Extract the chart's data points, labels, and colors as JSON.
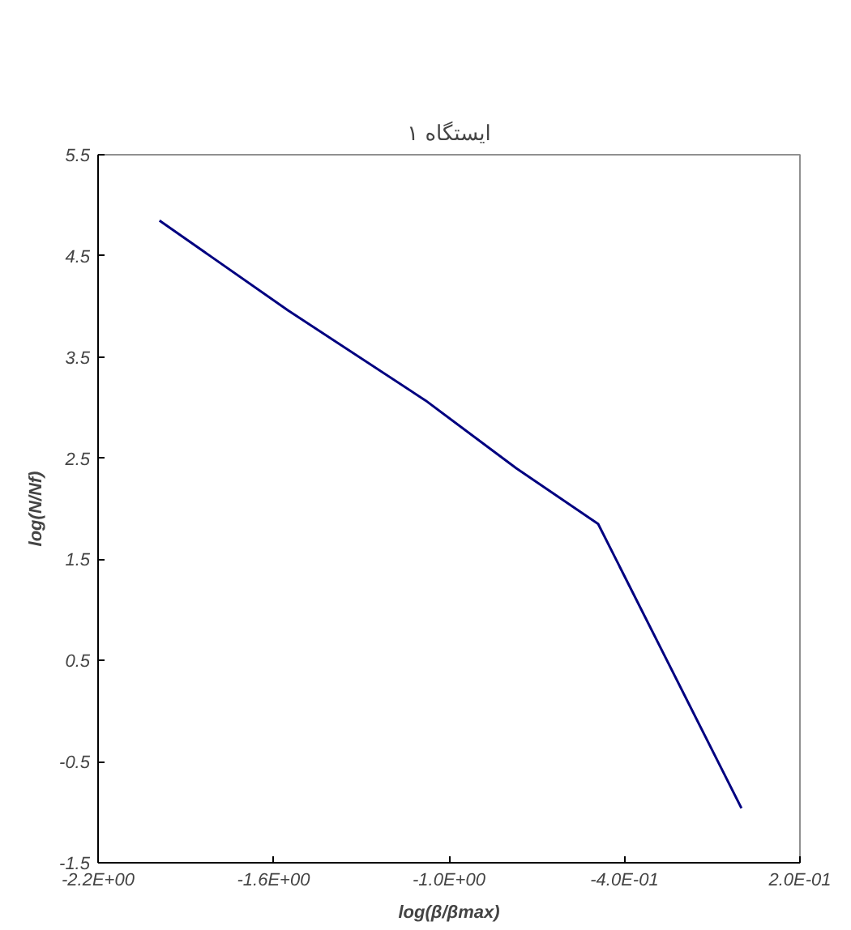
{
  "chart_data": {
    "type": "line",
    "title": "ایستگاه ۱",
    "xlabel": "log(β/βmax)",
    "ylabel": "log(N/Nf)",
    "x": [
      -1.99,
      -1.55,
      -1.08,
      -0.77,
      -0.49,
      0.0
    ],
    "series": [
      {
        "color": "#000080",
        "values": [
          4.85,
          3.96,
          3.07,
          2.4,
          1.85,
          -0.96
        ]
      }
    ],
    "xlim": [
      -2.2,
      0.2
    ],
    "ylim": [
      -1.5,
      5.5
    ],
    "xticks": [
      {
        "value": -2.2,
        "label": "-2.2E+00"
      },
      {
        "value": -1.6,
        "label": "-1.6E+00"
      },
      {
        "value": -1.0,
        "label": "-1.0E+00"
      },
      {
        "value": -0.4,
        "label": "-4.0E-01"
      },
      {
        "value": 0.2,
        "label": "2.0E-01"
      }
    ],
    "yticks": [
      -1.5,
      -0.5,
      0.5,
      1.5,
      2.5,
      3.5,
      4.5,
      5.5
    ],
    "grid": false,
    "marker": "none",
    "line_style": "solid"
  }
}
